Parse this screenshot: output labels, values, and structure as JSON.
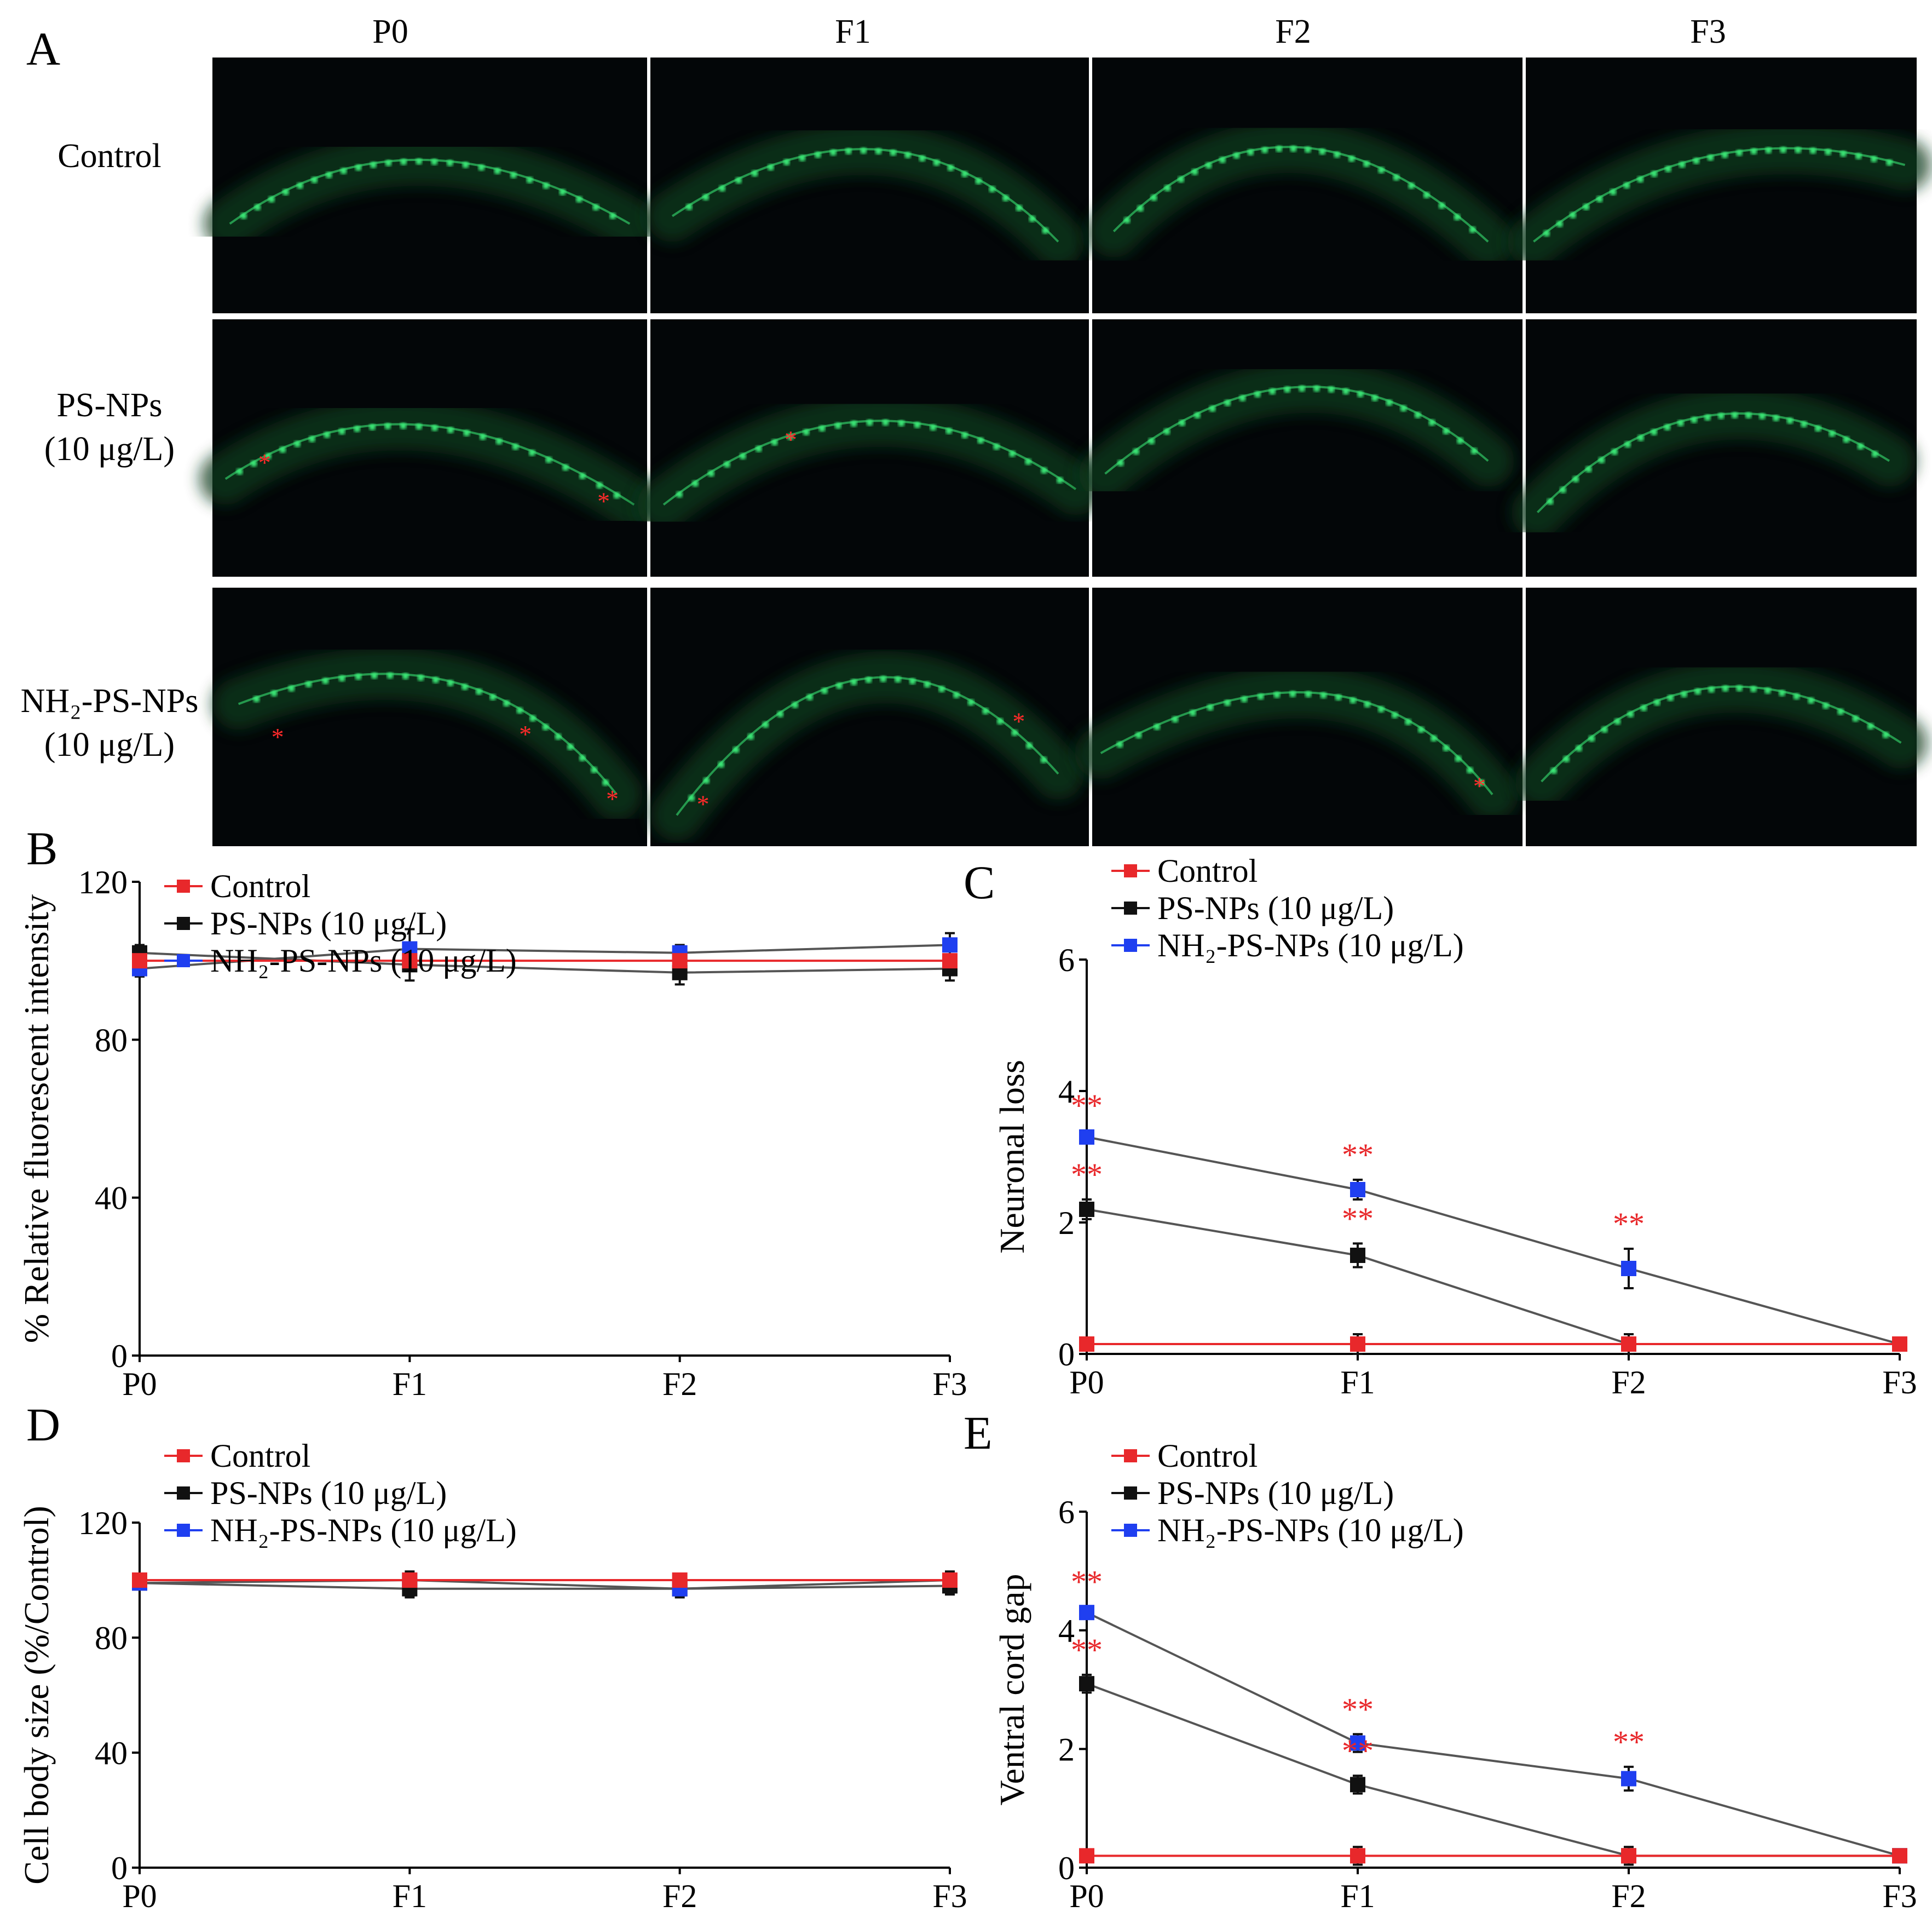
{
  "panels": {
    "A": "A",
    "B": "B",
    "C": "C",
    "D": "D",
    "E": "E"
  },
  "micrographs": {
    "columns": [
      "P0",
      "F1",
      "F2",
      "F3"
    ],
    "rows": [
      {
        "label_lines": [
          "Control"
        ]
      },
      {
        "label_lines": [
          "PS-NPs",
          "(10 μg/L)"
        ]
      },
      {
        "label_lines": [
          "NH₂-PS-NPs",
          "(10 μg/L)"
        ]
      }
    ],
    "marker": "*",
    "colors": {
      "background": "#030608",
      "neuron": "#3cf07a",
      "marker": "#ff2a2a"
    }
  },
  "series_colors": {
    "Control": "#e8282b",
    "PS-NPs (10 μg/L)": "#111111",
    "NH₂-PS-NPs (10 μg/L)": "#1f3ff0",
    "line": "#555555"
  },
  "chart_data": [
    {
      "id": "B",
      "type": "line",
      "title": "",
      "xlabel": "",
      "ylabel": "% Relative fluorescent intensity",
      "categories": [
        "P0",
        "F1",
        "F2",
        "F3"
      ],
      "ylim": [
        0,
        120
      ],
      "yticks": [
        0,
        40,
        80,
        120
      ],
      "legend": [
        "Control",
        "PS-NPs (10 μg/L)",
        "NH₂-PS-NPs (10 μg/L)"
      ],
      "series": [
        {
          "name": "Control",
          "values": [
            100,
            100,
            100,
            100
          ],
          "errors": [
            0,
            0,
            0,
            0
          ]
        },
        {
          "name": "PS-NPs (10 μg/L)",
          "values": [
            102,
            99,
            97,
            98
          ],
          "errors": [
            2,
            4,
            3,
            3
          ]
        },
        {
          "name": "NH₂-PS-NPs (10 μg/L)",
          "values": [
            98,
            103,
            102,
            104
          ],
          "errors": [
            2,
            5,
            2,
            3
          ]
        }
      ],
      "significance": []
    },
    {
      "id": "C",
      "type": "line",
      "title": "",
      "xlabel": "",
      "ylabel": "Neuronal loss",
      "categories": [
        "P0",
        "F1",
        "F2",
        "F3"
      ],
      "ylim": [
        0,
        6
      ],
      "yticks": [
        0,
        2,
        4,
        6
      ],
      "legend": [
        "Control",
        "PS-NPs (10 μg/L)",
        "NH₂-PS-NPs (10 μg/L)"
      ],
      "series": [
        {
          "name": "Control",
          "values": [
            0.15,
            0.15,
            0.15,
            0.15
          ],
          "errors": [
            0,
            0.15,
            0,
            0
          ]
        },
        {
          "name": "PS-NPs (10 μg/L)",
          "values": [
            2.2,
            1.5,
            0.15,
            0.15
          ],
          "errors": [
            0.15,
            0.18,
            0.15,
            0.05
          ]
        },
        {
          "name": "NH₂-PS-NPs (10 μg/L)",
          "values": [
            3.3,
            2.5,
            1.3,
            0.15
          ],
          "errors": [
            0.1,
            0.15,
            0.3,
            0.1
          ]
        }
      ],
      "significance": [
        {
          "series": 1,
          "index": 0,
          "label": "**"
        },
        {
          "series": 1,
          "index": 1,
          "label": "**"
        },
        {
          "series": 2,
          "index": 0,
          "label": "**"
        },
        {
          "series": 2,
          "index": 1,
          "label": "**"
        },
        {
          "series": 2,
          "index": 2,
          "label": "**"
        }
      ]
    },
    {
      "id": "D",
      "type": "line",
      "title": "",
      "xlabel": "",
      "ylabel": "Cell body size (%/Control)",
      "categories": [
        "P0",
        "F1",
        "F2",
        "F3"
      ],
      "ylim": [
        0,
        120
      ],
      "yticks": [
        0,
        40,
        80,
        120
      ],
      "legend": [
        "Control",
        "PS-NPs (10 μg/L)",
        "NH₂-PS-NPs (10 μg/L)"
      ],
      "series": [
        {
          "name": "Control",
          "values": [
            100,
            100,
            100,
            100
          ],
          "errors": [
            0,
            0,
            0,
            0
          ]
        },
        {
          "name": "PS-NPs (10 μg/L)",
          "values": [
            99,
            97,
            97,
            98
          ],
          "errors": [
            2,
            3,
            3,
            3
          ]
        },
        {
          "name": "NH₂-PS-NPs (10 μg/L)",
          "values": [
            99,
            100,
            97,
            100
          ],
          "errors": [
            2,
            3,
            2,
            3
          ]
        }
      ],
      "significance": []
    },
    {
      "id": "E",
      "type": "line",
      "title": "",
      "xlabel": "",
      "ylabel": "Ventral cord gap",
      "categories": [
        "P0",
        "F1",
        "F2",
        "F3"
      ],
      "ylim": [
        0,
        6
      ],
      "yticks": [
        0,
        2,
        4,
        6
      ],
      "legend": [
        "Control",
        "PS-NPs (10 μg/L)",
        "NH₂-PS-NPs (10 μg/L)"
      ],
      "series": [
        {
          "name": "Control",
          "values": [
            0.2,
            0.2,
            0.2,
            0.2
          ],
          "errors": [
            0,
            0.15,
            0,
            0
          ]
        },
        {
          "name": "PS-NPs (10 μg/L)",
          "values": [
            3.1,
            1.4,
            0.2,
            0.2
          ],
          "errors": [
            0.15,
            0.15,
            0.15,
            0.05
          ]
        },
        {
          "name": "NH₂-PS-NPs (10 μg/L)",
          "values": [
            4.3,
            2.1,
            1.5,
            0.2
          ],
          "errors": [
            0.1,
            0.15,
            0.2,
            0.1
          ]
        }
      ],
      "significance": [
        {
          "series": 1,
          "index": 0,
          "label": "**"
        },
        {
          "series": 1,
          "index": 1,
          "label": "**"
        },
        {
          "series": 2,
          "index": 0,
          "label": "**"
        },
        {
          "series": 2,
          "index": 1,
          "label": "**"
        },
        {
          "series": 2,
          "index": 2,
          "label": "**"
        }
      ]
    }
  ]
}
